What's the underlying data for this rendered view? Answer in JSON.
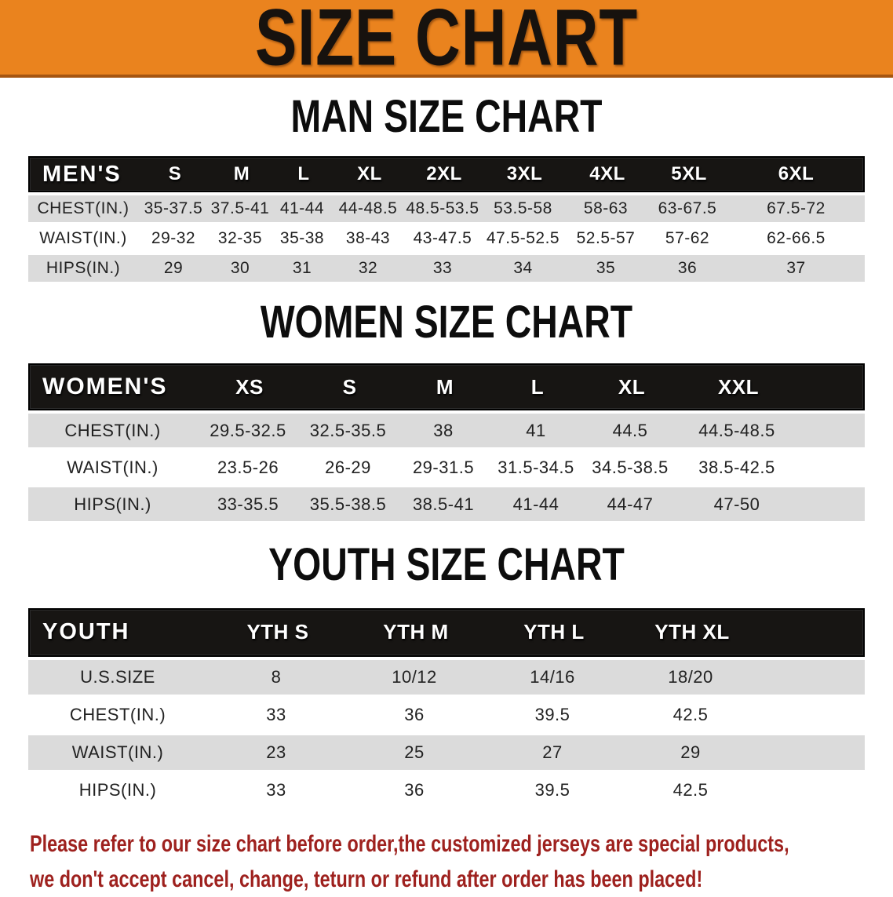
{
  "colors": {
    "banner_bg": "#EA831E",
    "banner_border": "#A55511",
    "band_bg": "#171513",
    "row_shade": "#DBDBDB",
    "footer_red": "#9E211E"
  },
  "banner": {
    "title": "SIZE CHART"
  },
  "sections": {
    "men": {
      "title": "MAN SIZE CHART"
    },
    "women": {
      "title": "WOMEN SIZE CHART"
    },
    "youth": {
      "title": "YOUTH SIZE CHART"
    }
  },
  "tables": {
    "men": {
      "header": [
        "MEN'S",
        "S",
        "M",
        "L",
        "XL",
        "2XL",
        "3XL",
        "4XL",
        "5XL",
        "6XL"
      ],
      "rows": [
        {
          "label": "CHEST(IN.)",
          "values": [
            "35-37.5",
            "37.5-41",
            "41-44",
            "44-48.5",
            "48.5-53.5",
            "53.5-58",
            "58-63",
            "63-67.5",
            "67.5-72"
          ]
        },
        {
          "label": "WAIST(IN.)",
          "values": [
            "29-32",
            "32-35",
            "35-38",
            "38-43",
            "43-47.5",
            "47.5-52.5",
            "52.5-57",
            "57-62",
            "62-66.5"
          ]
        },
        {
          "label": "HIPS(IN.)",
          "values": [
            "29",
            "30",
            "31",
            "32",
            "33",
            "34",
            "35",
            "36",
            "37"
          ]
        }
      ]
    },
    "women": {
      "header": [
        "WOMEN'S",
        "XS",
        "S",
        "M",
        "L",
        "XL",
        "XXL"
      ],
      "extra_cols": 1,
      "rows": [
        {
          "label": "CHEST(IN.)",
          "values": [
            "29.5-32.5",
            "32.5-35.5",
            "38",
            "41",
            "44.5",
            "44.5-48.5"
          ]
        },
        {
          "label": "WAIST(IN.)",
          "values": [
            "23.5-26",
            "26-29",
            "29-31.5",
            "31.5-34.5",
            "34.5-38.5",
            "38.5-42.5"
          ]
        },
        {
          "label": "HIPS(IN.)",
          "values": [
            "33-35.5",
            "35.5-38.5",
            "38.5-41",
            "41-44",
            "44-47",
            "47-50"
          ]
        }
      ]
    },
    "youth": {
      "header": [
        "YOUTH",
        "YTH S",
        "YTH M",
        "YTH L",
        "YTH XL"
      ],
      "extra_cols": 1,
      "rows": [
        {
          "label": "U.S.SIZE",
          "values": [
            "8",
            "10/12",
            "14/16",
            "18/20"
          ]
        },
        {
          "label": "CHEST(IN.)",
          "values": [
            "33",
            "36",
            "39.5",
            "42.5"
          ]
        },
        {
          "label": "WAIST(IN.)",
          "values": [
            "23",
            "25",
            "27",
            "29"
          ]
        },
        {
          "label": "HIPS(IN.)",
          "values": [
            "33",
            "36",
            "39.5",
            "42.5"
          ]
        }
      ]
    }
  },
  "footer": {
    "line1": "Please refer to our size chart before order,the customized jerseys are special products,",
    "line2": "we don't accept cancel, change, teturn or refund after order has been placed!"
  }
}
